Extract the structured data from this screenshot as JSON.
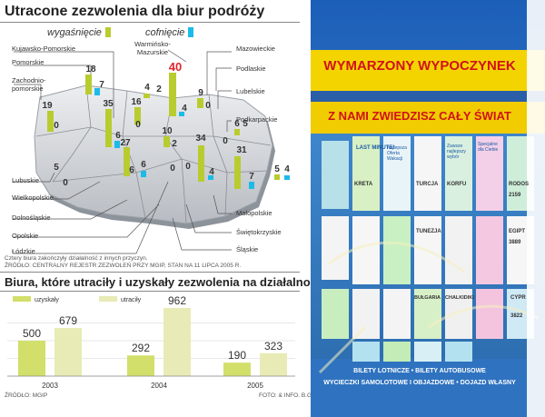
{
  "map_title": "Utracone zezwolenia dla biur podróży",
  "legend": {
    "expired_label": "wygaśnięcie",
    "revoked_label": "cofnięcie"
  },
  "colors": {
    "expired": "#b9cc2f",
    "revoked": "#1bbbe8",
    "bar_given": "#d2df6a",
    "bar_lost": "#e8ebb5",
    "highlight": "#e0262a"
  },
  "regions": [
    {
      "name": "Kujawsko-Pomorskie",
      "expired": "",
      "revoked": ""
    },
    {
      "name": "Pomorskie",
      "expired": "18",
      "revoked": "7"
    },
    {
      "name": "Zachodnio-pomorskie",
      "expired": "19",
      "revoked": "0"
    },
    {
      "name": "Warmińsko-Mazurskie",
      "expired": "4",
      "revoked": "2"
    },
    {
      "name": "Mazowieckie",
      "expired": "40",
      "revoked": "4"
    },
    {
      "name": "Podlaskie",
      "expired": "9",
      "revoked": "0"
    },
    {
      "name": "Lubelskie",
      "expired": "",
      "revoked": ""
    },
    {
      "name": "Podkarpackie",
      "expired": "6",
      "revoked": "5"
    },
    {
      "name": "Lubuskie",
      "expired": "5",
      "revoked": "0"
    },
    {
      "name": "Wielkopolskie",
      "expired": "35",
      "revoked": "6"
    },
    {
      "name": "Dolnośląskie",
      "expired": "27",
      "revoked": "6"
    },
    {
      "name": "Opolskie",
      "expired": "6",
      "revoked": "0"
    },
    {
      "name": "Łódzkie",
      "expired": "16",
      "revoked": "0"
    },
    {
      "name": "Małopolskie",
      "expired": "31",
      "revoked": "7"
    },
    {
      "name": "Świętokrzyskie",
      "expired": "4",
      "revoked": "0"
    },
    {
      "name": "Śląskie",
      "expired": "5",
      "revoked": "4"
    }
  ],
  "map_values": [
    "18",
    "7",
    "19",
    "0",
    "35",
    "6",
    "16",
    "0",
    "27",
    "6",
    "5",
    "0",
    "6",
    "0",
    "4",
    "2",
    "40",
    "4",
    "9",
    "0",
    "10",
    "2",
    "34",
    "4",
    "6",
    "5",
    "31",
    "7",
    "5",
    "4",
    "0",
    "0"
  ],
  "source_note_1": "Cztery biura zakończyły działalność z innych przyczyn.",
  "source_note_2": "ŹRÓDŁO: CENTRALNY REJESTR ZEZWOLEŃ PRZY MGIP, STAN NA 11 LIPCA 2005 R.",
  "bar_title": "Biura, które utraciły i uzyskały zezwolenia na działalność",
  "chart_data": {
    "type": "bar",
    "title": "Biura, które utraciły i uzyskały zezwolenia na działalność",
    "categories": [
      "2003",
      "2004",
      "2005"
    ],
    "series": [
      {
        "name": "uzyskały",
        "values": [
          500,
          292,
          190
        ]
      },
      {
        "name": "utraciły",
        "values": [
          679,
          962,
          323
        ]
      }
    ],
    "ylim": [
      0,
      1000
    ],
    "legend_position": "top-left"
  },
  "source_bottom": "ŹRÓDŁO: MGIP",
  "photo_credit": "FOTO: & INFO. B.G.",
  "photo": {
    "banner_top": "WYMARZONY WYPOCZYNEK",
    "banner_mid": "Z NAMI ZWIEDZISZ CAŁY ŚWIAT",
    "bottom_line1": "BILETY LOTNICZE • BILETY AUTOBUSOWE",
    "bottom_line2": "WYCIECZKI SAMOLOTOWE I OBJAZDOWE • DOJAZD WŁASNY",
    "posters": [
      "LAST MINUTE!",
      "Najlepsza Oferta Wakacji",
      "Zawsze najlepszy wybór",
      "Specjalne dla Ciebie",
      "KRETA",
      "TURCJA",
      "KORFU",
      "RODOS",
      "TUNEZJA",
      "EGIPT",
      "BUŁGARIA",
      "CHALKIDIKI",
      "CYPR",
      "2159",
      "3889",
      "3822"
    ]
  }
}
